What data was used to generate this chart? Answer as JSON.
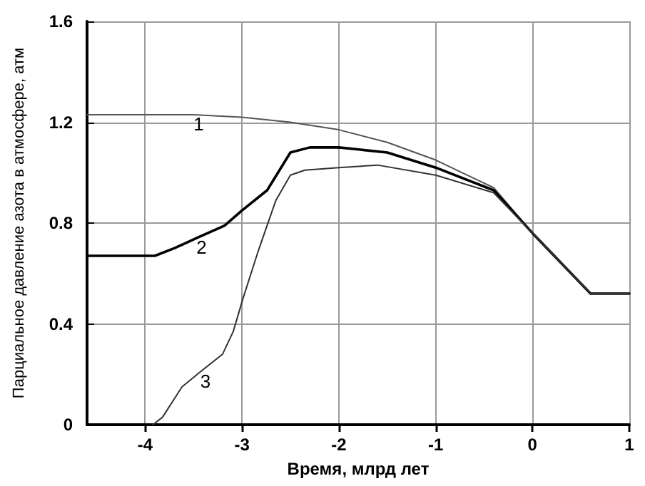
{
  "chart_data": {
    "type": "line",
    "xlabel": "Время, млрд лет",
    "ylabel": "Парциальное давление азота в атмосфере, атм",
    "xlim": [
      -4.6,
      1
    ],
    "xticks": [
      -4,
      -3,
      -2,
      -1,
      0,
      1
    ],
    "ylim": [
      0,
      1.6
    ],
    "yticks": [
      0,
      0.4,
      0.8,
      1.2,
      1.6
    ],
    "grid": true,
    "marker": "none",
    "line_style": "solid",
    "series": [
      {
        "name": "1",
        "color": "#555555",
        "x": [
          -4.6,
          -3.5,
          -3,
          -2.5,
          -2,
          -1.5,
          -1,
          -0.4,
          0,
          0.6,
          1
        ],
        "values": [
          1.23,
          1.23,
          1.22,
          1.2,
          1.17,
          1.12,
          1.05,
          0.94,
          0.76,
          0.52,
          0.52
        ]
      },
      {
        "name": "2",
        "color": "#000000",
        "x": [
          -4.6,
          -3.9,
          -3.7,
          -3.47,
          -3.18,
          -3,
          -2.74,
          -2.5,
          -2.3,
          -2,
          -1.5,
          -1,
          -0.4,
          0,
          0.6,
          1
        ],
        "values": [
          0.67,
          0.67,
          0.7,
          0.74,
          0.79,
          0.85,
          0.93,
          1.08,
          1.1,
          1.1,
          1.08,
          1.02,
          0.93,
          0.76,
          0.52,
          0.52
        ]
      },
      {
        "name": "3",
        "color": "#333333",
        "x": [
          -3.92,
          -3.82,
          -3.62,
          -3.43,
          -3.2,
          -3.09,
          -2.99,
          -2.84,
          -2.65,
          -2.5,
          -2.35,
          -2,
          -1.6,
          -1,
          -0.4,
          0,
          0.6,
          1
        ],
        "values": [
          0,
          0.03,
          0.15,
          0.21,
          0.28,
          0.37,
          0.5,
          0.68,
          0.89,
          0.99,
          1.01,
          1.02,
          1.03,
          0.99,
          0.92,
          0.76,
          0.52,
          0.52
        ]
      }
    ]
  }
}
